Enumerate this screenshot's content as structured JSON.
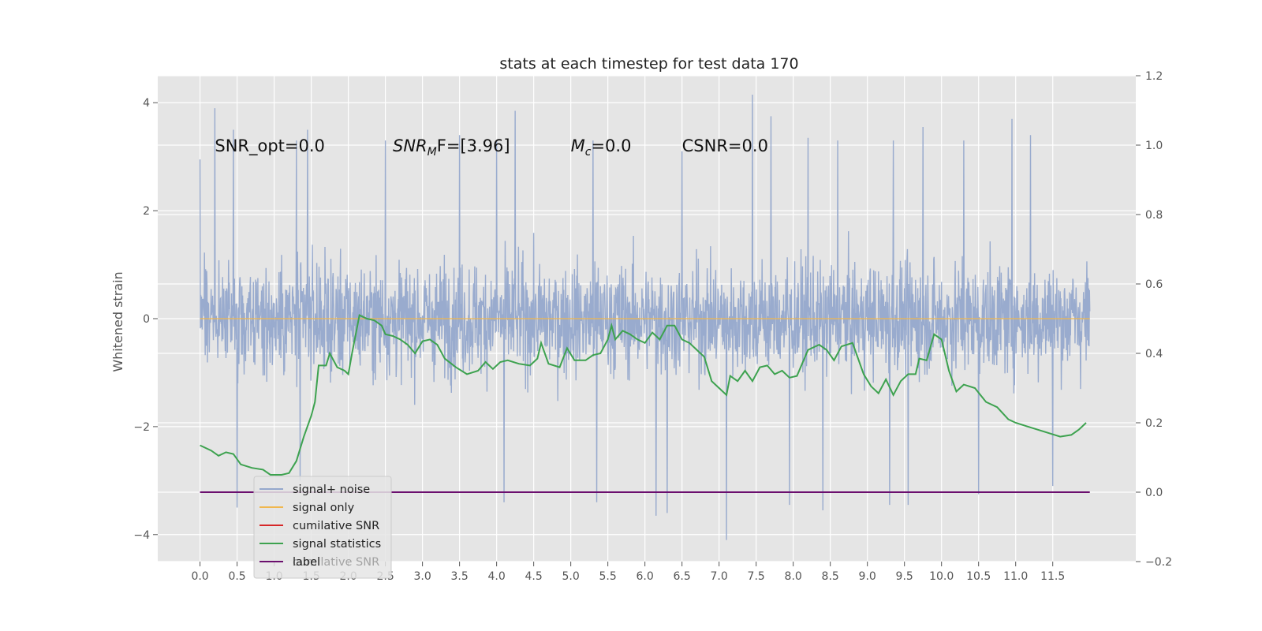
{
  "chart_data": {
    "type": "line",
    "title": "stats at each timestep for test data 170",
    "ylabel": "Whitened strain",
    "xlim": [
      -0.57,
      12.62
    ],
    "ylim": [
      -4.5,
      4.5
    ],
    "y2lim": [
      -0.2,
      1.2
    ],
    "x_ticks": [
      0.0,
      0.5,
      1.0,
      1.5,
      2.0,
      2.5,
      3.0,
      3.5,
      4.0,
      4.5,
      5.0,
      5.5,
      6.0,
      6.5,
      7.0,
      7.5,
      8.0,
      8.5,
      9.0,
      9.5,
      10.0,
      10.5,
      11.0,
      11.5
    ],
    "x_tick_labels": [
      "0.0",
      "0.5",
      "1.0",
      "1.5",
      "2.0",
      "2.5",
      "3.0",
      "3.5",
      "4.0",
      "4.5",
      "5.0",
      "5.5",
      "6.0",
      "6.5",
      "7.0",
      "7.5",
      "8.0",
      "8.5",
      "9.0",
      "9.5",
      "10.0",
      "10.5",
      "11.0",
      "11.5"
    ],
    "y_ticks": [
      -4,
      -2,
      0,
      2,
      4
    ],
    "y_tick_labels": [
      "−4",
      "−2",
      "0",
      "2",
      "4"
    ],
    "y2_ticks": [
      -0.2,
      0.0,
      0.2,
      0.4,
      0.6,
      0.8,
      1.0,
      1.2
    ],
    "y2_tick_labels": [
      "−0.2",
      "0.0",
      "0.2",
      "0.4",
      "0.6",
      "0.8",
      "1.0",
      "1.2"
    ],
    "grid": true,
    "legend_placement": "lower-left",
    "annotations": [
      {
        "id": "snr-opt",
        "x": 0.2,
        "text": "SNR_opt=0.0"
      },
      {
        "id": "snr-mf",
        "x": 2.6,
        "text_prefix": "SNR",
        "text_sub": "M",
        "text_suffix": "F=[3.96]"
      },
      {
        "id": "mc",
        "x": 5.0,
        "text_prefix": "M",
        "text_sub": "c",
        "text_suffix": "=0.0"
      },
      {
        "id": "csnr",
        "x": 6.5,
        "text": "CSNR=0.0"
      }
    ],
    "annotation_y": 3.2,
    "series": [
      {
        "name": "signal+ noise",
        "axis": "left",
        "color": "#95a8cc",
        "kind": "dense-noise",
        "x_range": [
          0.0,
          12.0
        ],
        "envelope_min_approx": -4.1,
        "envelope_max_approx": 4.15,
        "peaks": [
          [
            0.0,
            2.95
          ],
          [
            0.2,
            3.9
          ],
          [
            0.45,
            3.5
          ],
          [
            1.3,
            3.3
          ],
          [
            1.45,
            3.5
          ],
          [
            2.5,
            3.3
          ],
          [
            3.5,
            3.4
          ],
          [
            4.0,
            3.3
          ],
          [
            4.25,
            3.85
          ],
          [
            5.3,
            3.3
          ],
          [
            6.5,
            3.1
          ],
          [
            7.45,
            4.15
          ],
          [
            7.7,
            3.75
          ],
          [
            8.2,
            3.35
          ],
          [
            8.6,
            3.3
          ],
          [
            9.35,
            3.3
          ],
          [
            9.75,
            3.55
          ],
          [
            10.3,
            3.3
          ],
          [
            10.95,
            3.7
          ],
          [
            11.2,
            3.4
          ]
        ],
        "troughs": [
          [
            0.5,
            -3.5
          ],
          [
            1.35,
            -3.0
          ],
          [
            4.1,
            -3.4
          ],
          [
            5.35,
            -3.4
          ],
          [
            6.15,
            -3.65
          ],
          [
            6.3,
            -3.6
          ],
          [
            7.1,
            -4.1
          ],
          [
            7.95,
            -3.45
          ],
          [
            8.4,
            -3.55
          ],
          [
            9.3,
            -3.45
          ],
          [
            9.55,
            -3.45
          ],
          [
            10.5,
            -3.25
          ],
          [
            11.5,
            -3.1
          ]
        ]
      },
      {
        "name": "signal only",
        "axis": "left",
        "color": "#f0b74e",
        "x": [
          0.0,
          12.0
        ],
        "y": [
          0.0,
          0.0
        ]
      },
      {
        "name": "cumilative SNR",
        "axis": "right",
        "color": "#d62728",
        "x": [],
        "y": []
      },
      {
        "name": "signal statistics",
        "axis": "right",
        "color": "#3da24f",
        "x": [
          0.0,
          0.15,
          0.25,
          0.35,
          0.45,
          0.55,
          0.7,
          0.85,
          0.95,
          1.1,
          1.2,
          1.3,
          1.4,
          1.5,
          1.55,
          1.6,
          1.7,
          1.75,
          1.85,
          1.95,
          2.0,
          2.05,
          2.15,
          2.25,
          2.35,
          2.45,
          2.5,
          2.6,
          2.7,
          2.8,
          2.9,
          3.0,
          3.1,
          3.2,
          3.3,
          3.45,
          3.6,
          3.75,
          3.85,
          3.95,
          4.05,
          4.15,
          4.3,
          4.45,
          4.55,
          4.6,
          4.7,
          4.85,
          4.95,
          5.05,
          5.2,
          5.3,
          5.4,
          5.5,
          5.55,
          5.6,
          5.7,
          5.8,
          5.9,
          6.0,
          6.1,
          6.2,
          6.3,
          6.4,
          6.5,
          6.6,
          6.7,
          6.8,
          6.9,
          7.0,
          7.1,
          7.15,
          7.25,
          7.35,
          7.45,
          7.55,
          7.65,
          7.75,
          7.85,
          7.95,
          8.05,
          8.2,
          8.35,
          8.45,
          8.55,
          8.65,
          8.8,
          8.95,
          9.05,
          9.15,
          9.25,
          9.35,
          9.45,
          9.55,
          9.65,
          9.7,
          9.8,
          9.9,
          10.0,
          10.1,
          10.2,
          10.3,
          10.45,
          10.6,
          10.75,
          10.9,
          11.0,
          11.15,
          11.3,
          11.45,
          11.6,
          11.75,
          11.85,
          11.95
        ],
        "y": [
          0.135,
          0.12,
          0.105,
          0.115,
          0.11,
          0.08,
          0.07,
          0.065,
          0.05,
          0.05,
          0.055,
          0.09,
          0.16,
          0.22,
          0.26,
          0.365,
          0.365,
          0.4,
          0.36,
          0.35,
          0.34,
          0.4,
          0.51,
          0.5,
          0.495,
          0.48,
          0.455,
          0.45,
          0.44,
          0.425,
          0.4,
          0.435,
          0.44,
          0.425,
          0.385,
          0.36,
          0.34,
          0.35,
          0.375,
          0.355,
          0.375,
          0.38,
          0.37,
          0.365,
          0.385,
          0.43,
          0.37,
          0.36,
          0.415,
          0.38,
          0.38,
          0.395,
          0.4,
          0.44,
          0.48,
          0.44,
          0.465,
          0.455,
          0.44,
          0.43,
          0.46,
          0.44,
          0.48,
          0.48,
          0.44,
          0.43,
          0.41,
          0.39,
          0.32,
          0.3,
          0.28,
          0.335,
          0.32,
          0.35,
          0.32,
          0.36,
          0.365,
          0.34,
          0.35,
          0.33,
          0.335,
          0.41,
          0.425,
          0.41,
          0.38,
          0.42,
          0.43,
          0.34,
          0.305,
          0.285,
          0.325,
          0.28,
          0.32,
          0.34,
          0.34,
          0.385,
          0.38,
          0.455,
          0.44,
          0.35,
          0.29,
          0.31,
          0.3,
          0.26,
          0.245,
          0.21,
          0.2,
          0.19,
          0.18,
          0.17,
          0.16,
          0.165,
          0.18,
          0.2
        ]
      },
      {
        "name": "label",
        "axis": "right",
        "color": "#6b0f6e",
        "x": [
          0.0,
          12.0
        ],
        "y": [
          0.0,
          0.0
        ]
      }
    ],
    "legend_ghost_text": "cumilative SNR"
  }
}
